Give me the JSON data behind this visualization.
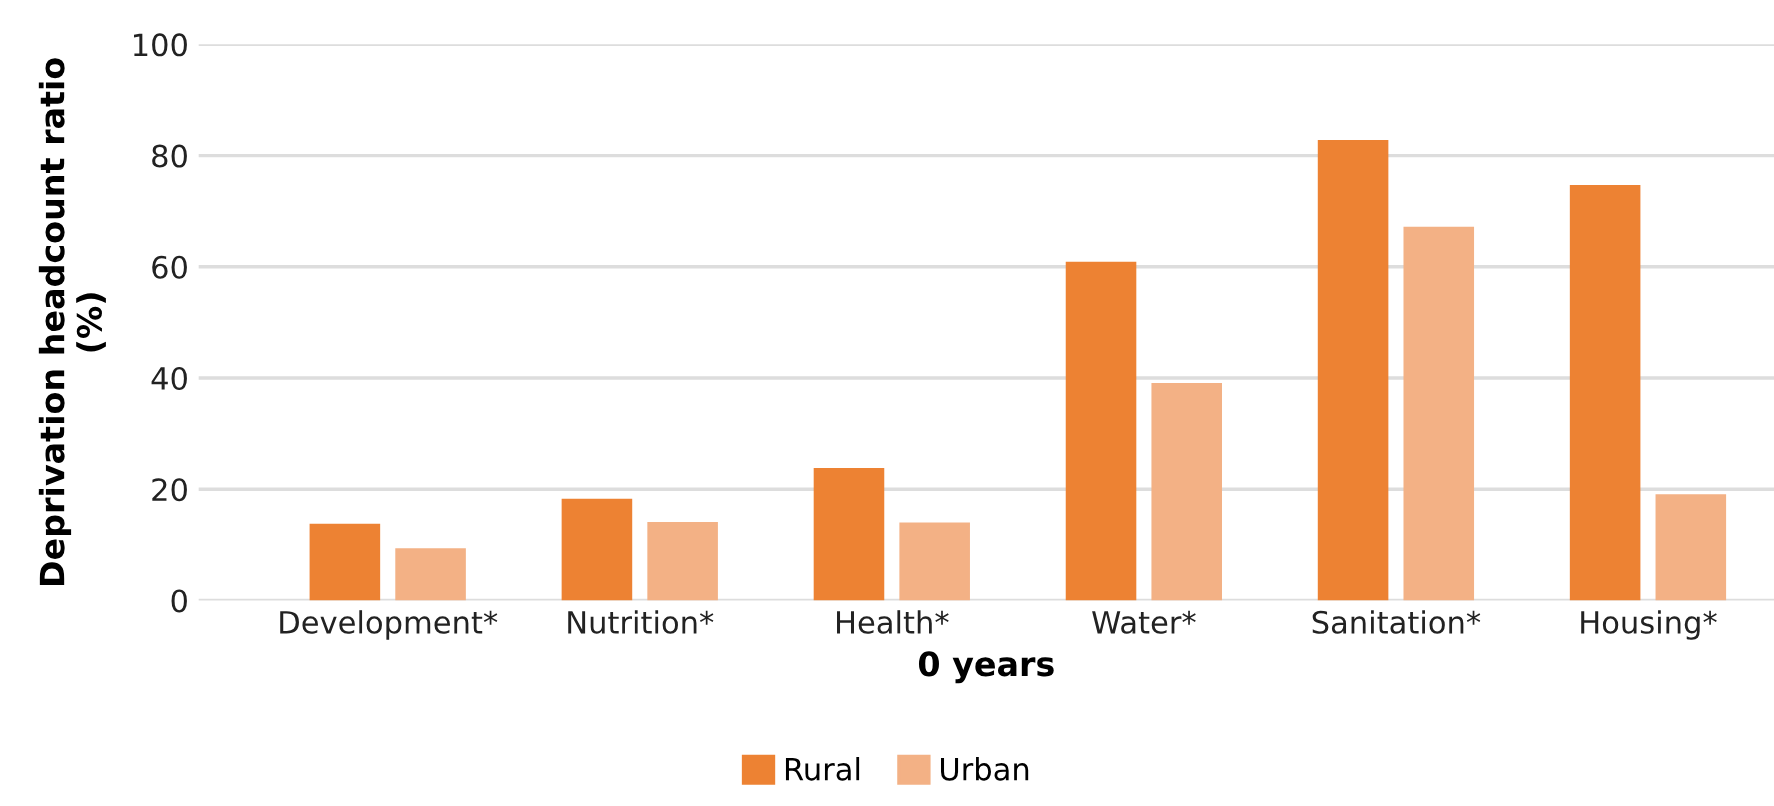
{
  "chart_data": {
    "type": "bar",
    "xlabel": "0 years",
    "ylabel": "Deprivation headcount ratio\n(%)",
    "categories": [
      "Development*",
      "Nutrition*",
      "Health*",
      "Water*",
      "Sanitation*",
      "Housing*"
    ],
    "series": [
      {
        "name": "Rural",
        "color": "#ed8233",
        "values": [
          13.8,
          18.3,
          23.8,
          60.9,
          82.8,
          74.7
        ]
      },
      {
        "name": "Urban",
        "color": "#f3b185",
        "values": [
          9.4,
          14.1,
          14.0,
          39.1,
          67.2,
          19.1
        ]
      }
    ],
    "ylim": [
      0,
      100
    ],
    "yticks": [
      0,
      20,
      40,
      60,
      80,
      100
    ],
    "grid": "y",
    "legend": "bottom"
  }
}
